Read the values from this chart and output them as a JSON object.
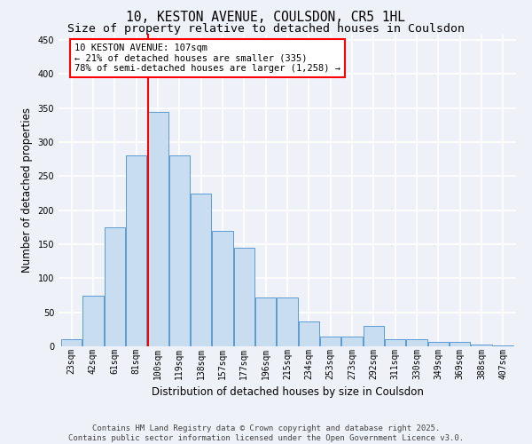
{
  "title_line1": "10, KESTON AVENUE, COULSDON, CR5 1HL",
  "title_line2": "Size of property relative to detached houses in Coulsdon",
  "xlabel": "Distribution of detached houses by size in Coulsdon",
  "ylabel": "Number of detached properties",
  "categories": [
    "23sqm",
    "42sqm",
    "61sqm",
    "81sqm",
    "100sqm",
    "119sqm",
    "138sqm",
    "157sqm",
    "177sqm",
    "196sqm",
    "215sqm",
    "234sqm",
    "253sqm",
    "273sqm",
    "292sqm",
    "311sqm",
    "330sqm",
    "349sqm",
    "369sqm",
    "388sqm",
    "407sqm"
  ],
  "values": [
    10,
    75,
    175,
    280,
    345,
    280,
    225,
    170,
    145,
    72,
    72,
    37,
    15,
    14,
    30,
    11,
    11,
    7,
    7,
    2,
    1
  ],
  "bar_color": "#c9ddf0",
  "bar_edge_color": "#5b9bd5",
  "vline_x_index": 4,
  "vline_color": "red",
  "annotation_text": "10 KESTON AVENUE: 107sqm\n← 21% of detached houses are smaller (335)\n78% of semi-detached houses are larger (1,258) →",
  "annotation_box_color": "white",
  "annotation_box_edge_color": "red",
  "ylim": [
    0,
    460
  ],
  "yticks": [
    0,
    50,
    100,
    150,
    200,
    250,
    300,
    350,
    400,
    450
  ],
  "footer_line1": "Contains HM Land Registry data © Crown copyright and database right 2025.",
  "footer_line2": "Contains public sector information licensed under the Open Government Licence v3.0.",
  "background_color": "#eef2f8",
  "grid_color": "white",
  "title_fontsize": 10.5,
  "subtitle_fontsize": 9.5,
  "axis_label_fontsize": 8.5,
  "tick_fontsize": 7,
  "annotation_fontsize": 7.5,
  "footer_fontsize": 6.5
}
